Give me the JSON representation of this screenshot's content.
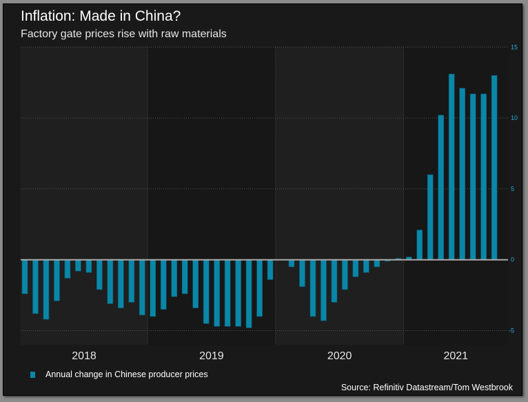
{
  "title": "Inflation: Made in China?",
  "subtitle": "Factory gate prices rise with raw materials",
  "source": "Source: Refinitiv Datastream/Tom Westbrook",
  "colors": {
    "bar": "#0a87a8",
    "tick_label": "#2aa8e0",
    "band_light": "#1f1f1f",
    "band_dark": "#171717"
  },
  "chart_data": {
    "type": "bar",
    "title": "Inflation: Made in China?",
    "subtitle": "Factory gate prices rise with raw materials",
    "xlabel": "",
    "ylabel": "",
    "ylim": [
      -6,
      15
    ],
    "yticks": [
      15,
      10,
      5,
      0,
      -5
    ],
    "ytick_position": "right",
    "grid": true,
    "legend_position": "bottom-left",
    "year_labels": [
      "2018",
      "2019",
      "2020",
      "2021"
    ],
    "series": [
      {
        "name": "Annual change in Chinese producer prices",
        "values": [
          -2.4,
          -3.8,
          -4.2,
          -2.9,
          -1.3,
          -0.8,
          -0.9,
          -2.1,
          -3.1,
          -3.4,
          -3.0,
          -3.9,
          -4.0,
          -3.5,
          -2.6,
          -2.4,
          -3.4,
          -4.5,
          -4.7,
          -4.7,
          -4.7,
          -4.8,
          -4.0,
          -1.4,
          0.0,
          -0.5,
          -1.9,
          -4.0,
          -4.3,
          -3.0,
          -2.1,
          -1.2,
          -0.9,
          -0.5,
          -0.1,
          0.1,
          0.2,
          2.1,
          6.0,
          10.2,
          13.1,
          12.1,
          11.7,
          11.7,
          13.0
        ]
      }
    ]
  }
}
